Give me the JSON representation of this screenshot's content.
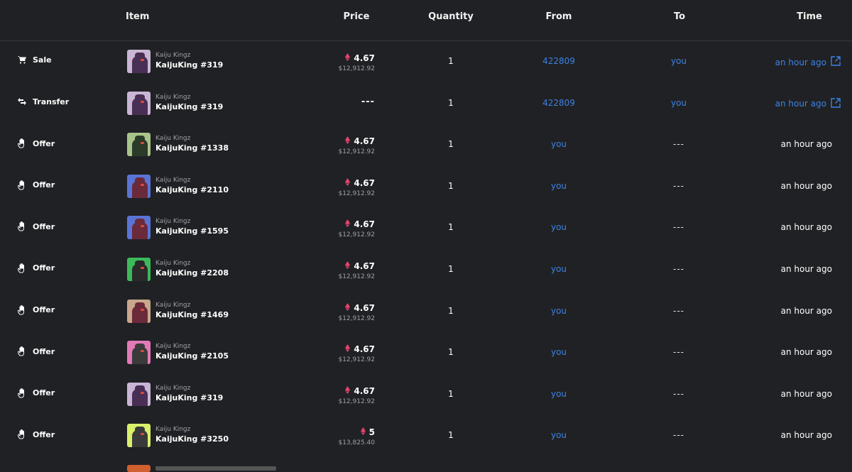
{
  "header": {
    "item": "Item",
    "price": "Price",
    "quantity": "Quantity",
    "from": "From",
    "to": "To",
    "time": "Time"
  },
  "colors": {
    "background": "#202124",
    "link": "#3b82e6",
    "eth_icon": "#e8436a",
    "muted": "#a0a0a6"
  },
  "rows": [
    {
      "type": "Sale",
      "icon": "cart-icon",
      "collection": "Kaiju Kingz",
      "name": "KaijuKing #319",
      "price": "4.67",
      "usd": "$12,912.92",
      "quantity": "1",
      "from": "422809",
      "to": "you",
      "time": "an hour ago",
      "thumb_bg": "#c9b6d4",
      "thumb_body": "#4a2f55"
    },
    {
      "type": "Transfer",
      "icon": "transfer-icon",
      "collection": "Kaiju Kingz",
      "name": "KaijuKing #319",
      "price": "---",
      "usd": "",
      "quantity": "1",
      "from": "422809",
      "to": "you",
      "time": "an hour ago",
      "thumb_bg": "#c9b6d4",
      "thumb_body": "#4a2f55"
    },
    {
      "type": "Offer",
      "icon": "hand-icon",
      "collection": "Kaiju Kingz",
      "name": "KaijuKing #1338",
      "price": "4.67",
      "usd": "$12,912.92",
      "quantity": "1",
      "from": "you",
      "to": "---",
      "time": "an hour ago",
      "thumb_bg": "#a9c48a",
      "thumb_body": "#2c3a2a"
    },
    {
      "type": "Offer",
      "icon": "hand-icon",
      "collection": "Kaiju Kingz",
      "name": "KaijuKing #2110",
      "price": "4.67",
      "usd": "$12,912.92",
      "quantity": "1",
      "from": "you",
      "to": "---",
      "time": "an hour ago",
      "thumb_bg": "#5a74d6",
      "thumb_body": "#6b2a3a"
    },
    {
      "type": "Offer",
      "icon": "hand-icon",
      "collection": "Kaiju Kingz",
      "name": "KaijuKing #1595",
      "price": "4.67",
      "usd": "$12,912.92",
      "quantity": "1",
      "from": "you",
      "to": "---",
      "time": "an hour ago",
      "thumb_bg": "#5a74d6",
      "thumb_body": "#6b2a3a"
    },
    {
      "type": "Offer",
      "icon": "hand-icon",
      "collection": "Kaiju Kingz",
      "name": "KaijuKing #2208",
      "price": "4.67",
      "usd": "$12,912.92",
      "quantity": "1",
      "from": "you",
      "to": "---",
      "time": "an hour ago",
      "thumb_bg": "#3cb95a",
      "thumb_body": "#2a2a2a"
    },
    {
      "type": "Offer",
      "icon": "hand-icon",
      "collection": "Kaiju Kingz",
      "name": "KaijuKing #1469",
      "price": "4.67",
      "usd": "$12,912.92",
      "quantity": "1",
      "from": "you",
      "to": "---",
      "time": "an hour ago",
      "thumb_bg": "#c9a78c",
      "thumb_body": "#6b2a3a"
    },
    {
      "type": "Offer",
      "icon": "hand-icon",
      "collection": "Kaiju Kingz",
      "name": "KaijuKing #2105",
      "price": "4.67",
      "usd": "$12,912.92",
      "quantity": "1",
      "from": "you",
      "to": "---",
      "time": "an hour ago",
      "thumb_bg": "#e27ab6",
      "thumb_body": "#3a3a3a"
    },
    {
      "type": "Offer",
      "icon": "hand-icon",
      "collection": "Kaiju Kingz",
      "name": "KaijuKing #319",
      "price": "4.67",
      "usd": "$12,912.92",
      "quantity": "1",
      "from": "you",
      "to": "---",
      "time": "an hour ago",
      "thumb_bg": "#c9b6d4",
      "thumb_body": "#4a2f55"
    },
    {
      "type": "Offer",
      "icon": "hand-icon",
      "collection": "Kaiju Kingz",
      "name": "KaijuKing #3250",
      "price": "5",
      "usd": "$13,825.40",
      "quantity": "1",
      "from": "you",
      "to": "---",
      "time": "an hour ago",
      "thumb_bg": "#d8f06a",
      "thumb_body": "#3a3a3a"
    }
  ]
}
